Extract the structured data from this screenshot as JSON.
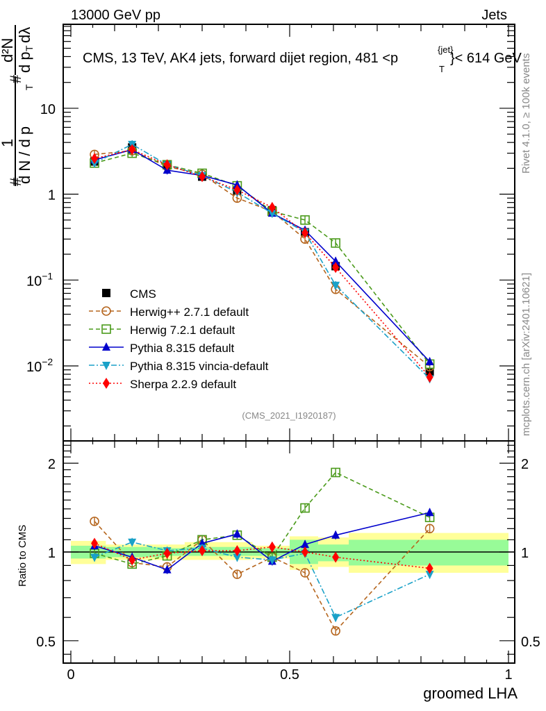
{
  "header": {
    "left": "13000 GeV pp",
    "right": "Jets"
  },
  "side_labels": {
    "rivet": "Rivet 4.1.0, ≥ 100k events",
    "mcplots": "mcplots.cern.ch [arXiv:2401.10621]"
  },
  "analysis_id": "(CMS_2021_I1920187)",
  "chart_data": [
    {
      "type": "line",
      "panel": "main",
      "title": "CMS, 13 TeV, AK4 jets, forward dijet region, 481 <p_T^{jet}< 614 GeV",
      "title_parts": {
        "main": "CMS, 13 TeV, AK4 jets, forward dijet region, 481 <p",
        "sup": "{jet}",
        "sub": "T",
        "tail": "}< 614 GeV"
      },
      "ylabel": "1/(dN/dpT) d²N/(dpT dλ)",
      "ylabel_parts": {
        "frac1_num": "1",
        "frac1_den": "d N / d p",
        "frac2_num": "d²N",
        "frac2_den": "d p",
        "frac2_den2": "dλ",
        "hash": "#",
        "sub": "T"
      },
      "xlabel": "",
      "yscale": "log",
      "ylim": [
        0.00134,
        95
      ],
      "xlim": [
        -0.0,
        1.0
      ],
      "yticks": [
        {
          "value": 10,
          "label": "10",
          "exp": ""
        },
        {
          "value": 1,
          "label": "1",
          "exp": ""
        },
        {
          "value": 0.1,
          "label": "10",
          "exp": "−1"
        },
        {
          "value": 0.01,
          "label": "10",
          "exp": "−2"
        }
      ],
      "x": [
        0.054,
        0.14,
        0.22,
        0.3,
        0.38,
        0.46,
        0.535,
        0.605,
        0.82
      ],
      "series": [
        {
          "name": "CMS",
          "color": "#000000",
          "marker": "square",
          "dash": "none",
          "values": [
            2.4,
            3.5,
            2.2,
            1.6,
            1.1,
            0.65,
            0.36,
            0.145,
            0.0085
          ]
        },
        {
          "name": "Herwig++ 2.7.1 default",
          "color": "#b5651d",
          "marker": "open-circle",
          "dash": "dashed",
          "values": [
            2.9,
            3.2,
            2.1,
            1.7,
            0.9,
            0.63,
            0.3,
            0.078,
            0.0098
          ]
        },
        {
          "name": "Herwig 7.2.1 default",
          "color": "#4a9a1a",
          "marker": "open-square",
          "dash": "dashed",
          "values": [
            2.3,
            3.0,
            2.2,
            1.75,
            1.25,
            0.63,
            0.5,
            0.27,
            0.0105
          ]
        },
        {
          "name": "Pythia 8.315 default",
          "color": "#0000cc",
          "marker": "triangle-up",
          "dash": "solid",
          "values": [
            2.5,
            3.3,
            1.9,
            1.65,
            1.28,
            0.6,
            0.38,
            0.165,
            0.0112
          ]
        },
        {
          "name": "Pythia 8.315 vincia-default",
          "color": "#1aa1c8",
          "marker": "triangle-down",
          "dash": "dashdot",
          "values": [
            2.3,
            3.8,
            2.2,
            1.65,
            1.05,
            0.6,
            0.36,
            0.087,
            0.0071
          ]
        },
        {
          "name": "Sherpa 2.2.9 default",
          "color": "#ff0000",
          "marker": "diamond",
          "dash": "dotted",
          "values": [
            2.6,
            3.3,
            2.2,
            1.6,
            1.12,
            0.7,
            0.355,
            0.14,
            0.0074
          ]
        }
      ],
      "legend": "middle-left"
    },
    {
      "type": "line",
      "panel": "ratio",
      "ylabel": "Ratio to CMS",
      "xlabel": "groomed LHA",
      "yscale": "log",
      "ylim": [
        0.42,
        2.38
      ],
      "xlim": [
        -0.0,
        1.0
      ],
      "yticks": [
        {
          "value": 0.5,
          "label": "0.5"
        },
        {
          "value": 1,
          "label": "1"
        },
        {
          "value": 2,
          "label": "2"
        }
      ],
      "xticks": [
        {
          "value": 0,
          "label": "0"
        },
        {
          "value": 0.5,
          "label": "0.5"
        },
        {
          "value": 1,
          "label": "1"
        }
      ],
      "x": [
        0.054,
        0.14,
        0.22,
        0.3,
        0.38,
        0.46,
        0.535,
        0.605,
        0.82
      ],
      "bands": {
        "edges": [
          0.0,
          0.08,
          0.21,
          0.26,
          0.415,
          0.5,
          0.565,
          0.635,
          1.0
        ],
        "green_upper": [
          1.05,
          1.04,
          1.03,
          1.04,
          1.03,
          1.1,
          1.06,
          1.1,
          1.19
        ],
        "green_lower": [
          0.95,
          0.96,
          0.97,
          0.97,
          0.97,
          0.91,
          0.93,
          0.9,
          0.89
        ],
        "yellow_upper": [
          1.09,
          1.06,
          1.06,
          1.08,
          1.05,
          1.13,
          1.12,
          1.16,
          1.37
        ],
        "yellow_lower": [
          0.91,
          0.94,
          0.94,
          0.94,
          0.95,
          0.87,
          0.89,
          0.85,
          0.76
        ],
        "green_color": "#98fb98",
        "yellow_color": "#ffff99"
      },
      "series": [
        {
          "name": "Herwig++ 2.7.1 default",
          "color": "#b5651d",
          "marker": "open-circle",
          "dash": "dashed",
          "values": [
            1.27,
            0.92,
            0.89,
            1.1,
            0.84,
            0.96,
            0.85,
            0.54,
            1.2
          ]
        },
        {
          "name": "Herwig 7.2.1 default",
          "color": "#4a9a1a",
          "marker": "open-square",
          "dash": "dashed",
          "values": [
            0.99,
            0.91,
            0.97,
            1.1,
            1.14,
            0.96,
            1.41,
            1.86,
            1.31
          ]
        },
        {
          "name": "Pythia 8.315 default",
          "color": "#0000cc",
          "marker": "triangle-up",
          "dash": "solid",
          "values": [
            1.05,
            0.96,
            0.87,
            1.07,
            1.15,
            0.93,
            1.06,
            1.14,
            1.36
          ]
        },
        {
          "name": "Pythia 8.315 vincia-default",
          "color": "#1aa1c8",
          "marker": "triangle-down",
          "dash": "dashdot",
          "values": [
            0.96,
            1.08,
            1.01,
            1.03,
            0.96,
            0.94,
            0.99,
            0.6,
            0.84
          ]
        },
        {
          "name": "Sherpa 2.2.9 default",
          "color": "#ff0000",
          "marker": "diamond",
          "dash": "dotted",
          "values": [
            1.07,
            0.94,
            0.99,
            1.01,
            1.01,
            1.04,
            1.0,
            0.96,
            0.88
          ]
        }
      ]
    }
  ]
}
